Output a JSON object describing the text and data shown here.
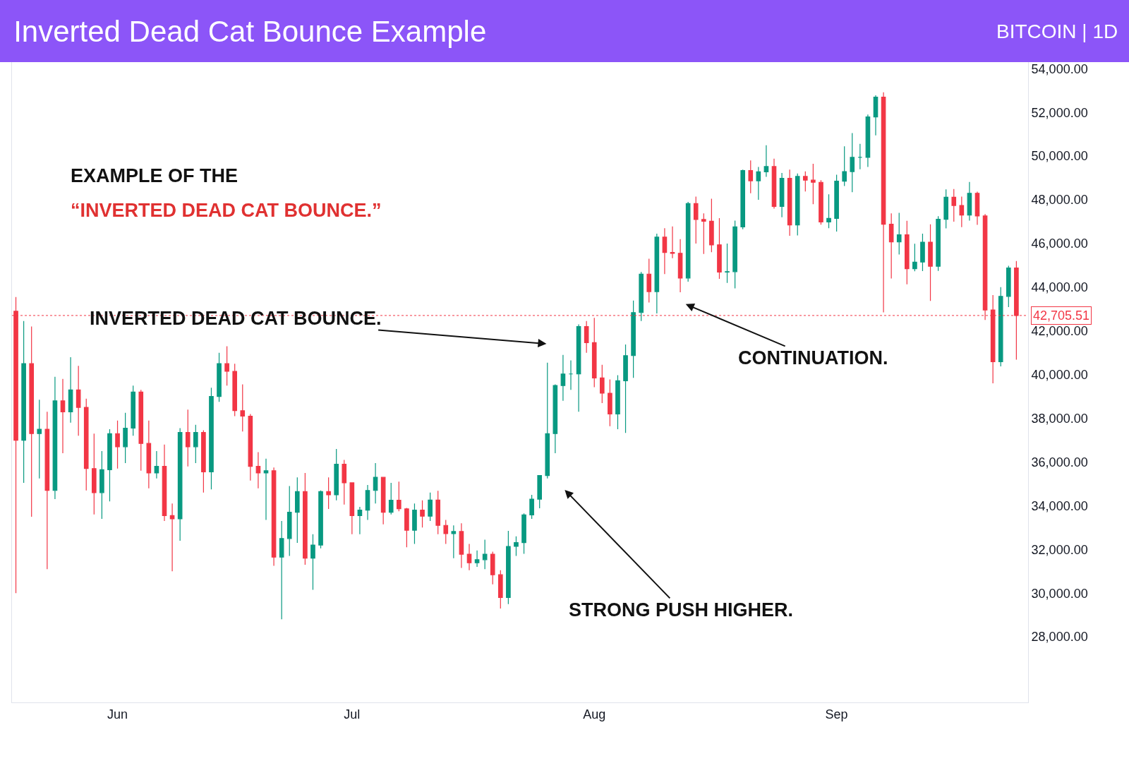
{
  "chart_data": {
    "type": "candlestick",
    "title": "Inverted Dead Cat Bounce Example",
    "subtitle": "BITCOIN | 1D",
    "x": [
      "--05-19",
      "--05-20",
      "--05-21",
      "--05-22",
      "--05-23",
      "--05-24",
      "--05-25",
      "--05-26",
      "--05-27",
      "--05-28",
      "--05-29",
      "--05-30",
      "--05-31",
      "--06-01",
      "--06-02",
      "--06-03",
      "--06-04",
      "--06-05",
      "--06-06",
      "--06-07",
      "--06-08",
      "--06-09",
      "--06-10",
      "--06-11",
      "--06-12",
      "--06-13",
      "--06-14",
      "--06-15",
      "--06-16",
      "--06-17",
      "--06-18",
      "--06-19",
      "--06-20",
      "--06-21",
      "--06-22",
      "--06-23",
      "--06-24",
      "--06-25",
      "--06-26",
      "--06-27",
      "--06-28",
      "--06-29",
      "--06-30",
      "--07-01",
      "--07-02",
      "--07-03",
      "--07-04",
      "--07-05",
      "--07-06",
      "--07-07",
      "--07-08",
      "--07-09",
      "--07-10",
      "--07-11",
      "--07-12",
      "--07-13",
      "--07-14",
      "--07-15",
      "--07-16",
      "--07-17",
      "--07-18",
      "--07-19",
      "--07-20",
      "--07-21",
      "--07-22",
      "--07-23",
      "--07-24",
      "--07-25",
      "--07-26",
      "--07-27",
      "--07-28",
      "--07-29",
      "--07-30",
      "--07-31",
      "--08-01",
      "--08-02",
      "--08-03",
      "--08-04",
      "--08-05",
      "--08-06",
      "--08-07",
      "--08-08",
      "--08-09",
      "--08-10",
      "--08-11",
      "--08-12",
      "--08-13",
      "--08-14",
      "--08-15",
      "--08-16",
      "--08-17",
      "--08-18",
      "--08-19",
      "--08-20",
      "--08-21",
      "--08-22",
      "--08-23",
      "--08-24",
      "--08-25",
      "--08-26",
      "--08-27",
      "--08-28",
      "--08-29",
      "--08-30",
      "--08-31",
      "--09-01",
      "--09-02",
      "--09-03",
      "--09-04",
      "--09-05",
      "--09-06",
      "--09-07",
      "--09-08",
      "--09-09",
      "--09-10",
      "--09-11",
      "--09-12",
      "--09-13",
      "--09-14",
      "--09-15",
      "--09-16",
      "--09-17",
      "--09-18",
      "--09-19",
      "--09-20",
      "--09-21",
      "--09-22",
      "--09-23",
      "--09-24"
    ],
    "ohlc": [
      [
        42900,
        43550,
        30000,
        37000
      ],
      [
        37000,
        42450,
        35050,
        40500
      ],
      [
        40500,
        42200,
        33500,
        37300
      ],
      [
        37300,
        38850,
        35250,
        37500
      ],
      [
        37500,
        38300,
        31100,
        34700
      ],
      [
        34700,
        39900,
        34300,
        38800
      ],
      [
        38800,
        39800,
        36400,
        38300
      ],
      [
        38300,
        40800,
        37800,
        39300
      ],
      [
        39300,
        40400,
        37200,
        38500
      ],
      [
        38500,
        38900,
        34700,
        35700
      ],
      [
        35700,
        37300,
        33600,
        34600
      ],
      [
        34600,
        36500,
        33400,
        35650
      ],
      [
        35650,
        37500,
        34200,
        37300
      ],
      [
        37300,
        37900,
        35700,
        36700
      ],
      [
        36700,
        38250,
        35950,
        37550
      ],
      [
        37550,
        39500,
        37200,
        39200
      ],
      [
        39200,
        39300,
        35600,
        36850
      ],
      [
        36850,
        37900,
        34800,
        35500
      ],
      [
        35500,
        36500,
        35250,
        35800
      ],
      [
        35800,
        36800,
        33300,
        33550
      ],
      [
        33550,
        34100,
        31000,
        33400
      ],
      [
        33400,
        37550,
        32400,
        37350
      ],
      [
        37350,
        38400,
        35800,
        36700
      ],
      [
        36700,
        37700,
        35950,
        37350
      ],
      [
        37350,
        37450,
        34600,
        35550
      ],
      [
        35550,
        39400,
        34750,
        39000
      ],
      [
        39000,
        41000,
        38750,
        40500
      ],
      [
        40500,
        41300,
        39500,
        40150
      ],
      [
        40150,
        40500,
        38100,
        38350
      ],
      [
        38350,
        39550,
        37400,
        38100
      ],
      [
        38100,
        38200,
        35150,
        35800
      ],
      [
        35800,
        36450,
        34800,
        35500
      ],
      [
        35500,
        36150,
        33350,
        35600
      ],
      [
        35600,
        35750,
        31250,
        31650
      ],
      [
        31650,
        33300,
        28800,
        32500
      ],
      [
        32500,
        34900,
        31700,
        33700
      ],
      [
        33700,
        35300,
        32300,
        34650
      ],
      [
        34650,
        35500,
        31300,
        31600
      ],
      [
        31600,
        32700,
        30150,
        32200
      ],
      [
        32200,
        34700,
        32050,
        34650
      ],
      [
        34650,
        35300,
        33850,
        34500
      ],
      [
        34500,
        36600,
        34250,
        35900
      ],
      [
        35900,
        36100,
        34050,
        35050
      ],
      [
        35050,
        35050,
        32700,
        33550
      ],
      [
        33550,
        33950,
        32700,
        33800
      ],
      [
        33800,
        34950,
        33350,
        34700
      ],
      [
        34700,
        35950,
        34100,
        35300
      ],
      [
        35300,
        35300,
        33150,
        33700
      ],
      [
        33700,
        35050,
        33600,
        34250
      ],
      [
        34250,
        35100,
        33750,
        33860
      ],
      [
        33860,
        33900,
        32100,
        32880
      ],
      [
        32880,
        34100,
        32250,
        33800
      ],
      [
        33800,
        34250,
        33000,
        33520
      ],
      [
        33520,
        34600,
        33300,
        34260
      ],
      [
        34260,
        34680,
        32700,
        33100
      ],
      [
        33100,
        33350,
        32250,
        32720
      ],
      [
        32720,
        33100,
        31600,
        32820
      ],
      [
        32820,
        33200,
        31150,
        31780
      ],
      [
        31780,
        32250,
        31050,
        31390
      ],
      [
        31390,
        31950,
        31200,
        31530
      ],
      [
        31530,
        32450,
        31100,
        31780
      ],
      [
        31780,
        31900,
        30400,
        30840
      ],
      [
        30840,
        31050,
        29300,
        29800
      ],
      [
        29800,
        32850,
        29500,
        32140
      ],
      [
        32140,
        32600,
        31700,
        32310
      ],
      [
        32310,
        33650,
        31800,
        33580
      ],
      [
        33580,
        34500,
        33400,
        34300
      ],
      [
        34300,
        35400,
        33880,
        35380
      ],
      [
        35380,
        40550,
        35250,
        37300
      ],
      [
        37300,
        39550,
        36400,
        39500
      ],
      [
        39500,
        40900,
        38800,
        40030
      ],
      [
        40030,
        40650,
        39300,
        40030
      ],
      [
        40030,
        42300,
        38300,
        42200
      ],
      [
        42200,
        42450,
        41000,
        41460
      ],
      [
        41460,
        42600,
        39420,
        39850
      ],
      [
        39850,
        40450,
        38700,
        39150
      ],
      [
        39150,
        39780,
        37640,
        38200
      ],
      [
        38200,
        39970,
        37500,
        39720
      ],
      [
        39720,
        41380,
        37330,
        40870
      ],
      [
        40870,
        43390,
        39850,
        42840
      ],
      [
        42840,
        44700,
        42450,
        44600
      ],
      [
        44600,
        45300,
        43300,
        43800
      ],
      [
        43800,
        46450,
        42800,
        46290
      ],
      [
        46290,
        46700,
        44600,
        45590
      ],
      [
        45590,
        46780,
        45330,
        45550
      ],
      [
        45550,
        46200,
        43770,
        44420
      ],
      [
        44420,
        47900,
        44250,
        47830
      ],
      [
        47830,
        48150,
        46000,
        47100
      ],
      [
        47100,
        47380,
        45520,
        47020
      ],
      [
        47020,
        48050,
        45600,
        45940
      ],
      [
        45940,
        47160,
        44380,
        44690
      ],
      [
        44690,
        46000,
        44200,
        44710
      ],
      [
        44710,
        47050,
        43950,
        46760
      ],
      [
        46760,
        49380,
        46650,
        49340
      ],
      [
        49340,
        49800,
        48300,
        48870
      ],
      [
        48870,
        49500,
        48000,
        49280
      ],
      [
        49280,
        50500,
        49050,
        49520
      ],
      [
        49520,
        49880,
        47600,
        47700
      ],
      [
        47700,
        49230,
        47200,
        48980
      ],
      [
        48980,
        49380,
        46350,
        46850
      ],
      [
        46850,
        49200,
        46370,
        49070
      ],
      [
        49070,
        49300,
        48380,
        48900
      ],
      [
        48900,
        49650,
        47800,
        48800
      ],
      [
        48800,
        48900,
        46860,
        46990
      ],
      [
        46990,
        48250,
        46700,
        47150
      ],
      [
        47150,
        49150,
        46550,
        48850
      ],
      [
        48850,
        50450,
        48630,
        49290
      ],
      [
        49290,
        51050,
        48350,
        49940
      ],
      [
        49940,
        50560,
        49400,
        49940
      ],
      [
        49940,
        51900,
        49500,
        51790
      ],
      [
        51790,
        52780,
        50950,
        52700
      ],
      [
        52700,
        52920,
        42850,
        46880
      ],
      [
        46880,
        47380,
        44400,
        46070
      ],
      [
        46070,
        47400,
        45500,
        46400
      ],
      [
        46400,
        47040,
        44130,
        44850
      ],
      [
        44850,
        45990,
        44730,
        45150
      ],
      [
        45150,
        46450,
        44740,
        46060
      ],
      [
        46060,
        46880,
        43370,
        44960
      ],
      [
        44960,
        47250,
        44750,
        47110
      ],
      [
        47110,
        48480,
        46690,
        48120
      ],
      [
        48120,
        48490,
        47000,
        47740
      ],
      [
        47740,
        48150,
        46750,
        47300
      ],
      [
        47300,
        48820,
        47050,
        48300
      ],
      [
        48300,
        48370,
        46850,
        47260
      ],
      [
        47260,
        47350,
        42500,
        42960
      ],
      [
        42960,
        43640,
        39600,
        40590
      ],
      [
        40590,
        44000,
        40380,
        43580
      ],
      [
        43580,
        44980,
        43090,
        44880
      ],
      [
        44880,
        45200,
        40680,
        42705.51
      ]
    ],
    "xlim": [
      "--05-18T12:00",
      "--09-25T12:00"
    ],
    "xticks": [
      {
        "value": "--06-01",
        "label": "Jun"
      },
      {
        "value": "--07-01",
        "label": "Jul"
      },
      {
        "value": "--08-01",
        "label": "Aug"
      },
      {
        "value": "--09-01",
        "label": "Sep"
      }
    ],
    "ylim": [
      25000,
      54300
    ],
    "yticks": [
      {
        "value": 28000,
        "label": "28,000.00"
      },
      {
        "value": 30000,
        "label": "30,000.00"
      },
      {
        "value": 32000,
        "label": "32,000.00"
      },
      {
        "value": 34000,
        "label": "34,000.00"
      },
      {
        "value": 36000,
        "label": "36,000.00"
      },
      {
        "value": 38000,
        "label": "38,000.00"
      },
      {
        "value": 40000,
        "label": "40,000.00"
      },
      {
        "value": 42000,
        "label": "42,000.00"
      },
      {
        "value": 44000,
        "label": "44,000.00"
      },
      {
        "value": 46000,
        "label": "46,000.00"
      },
      {
        "value": 48000,
        "label": "48,000.00"
      },
      {
        "value": 50000,
        "label": "50,000.00"
      },
      {
        "value": 52000,
        "label": "52,000.00"
      },
      {
        "value": 54000,
        "label": "54,000.00"
      }
    ],
    "ref_lines": [
      {
        "axis": "y",
        "value": 42705.51,
        "label": "42,705.51",
        "color": "#f23645",
        "line_style": "dotted"
      }
    ],
    "annotations": [
      "EXAMPLE OF THE",
      "“INVERTED DEAD CAT BOUNCE.”",
      "INVERTED DEAD CAT BOUNCE.",
      "CONTINUATION.",
      "STRONG PUSH HIGHER."
    ]
  }
}
